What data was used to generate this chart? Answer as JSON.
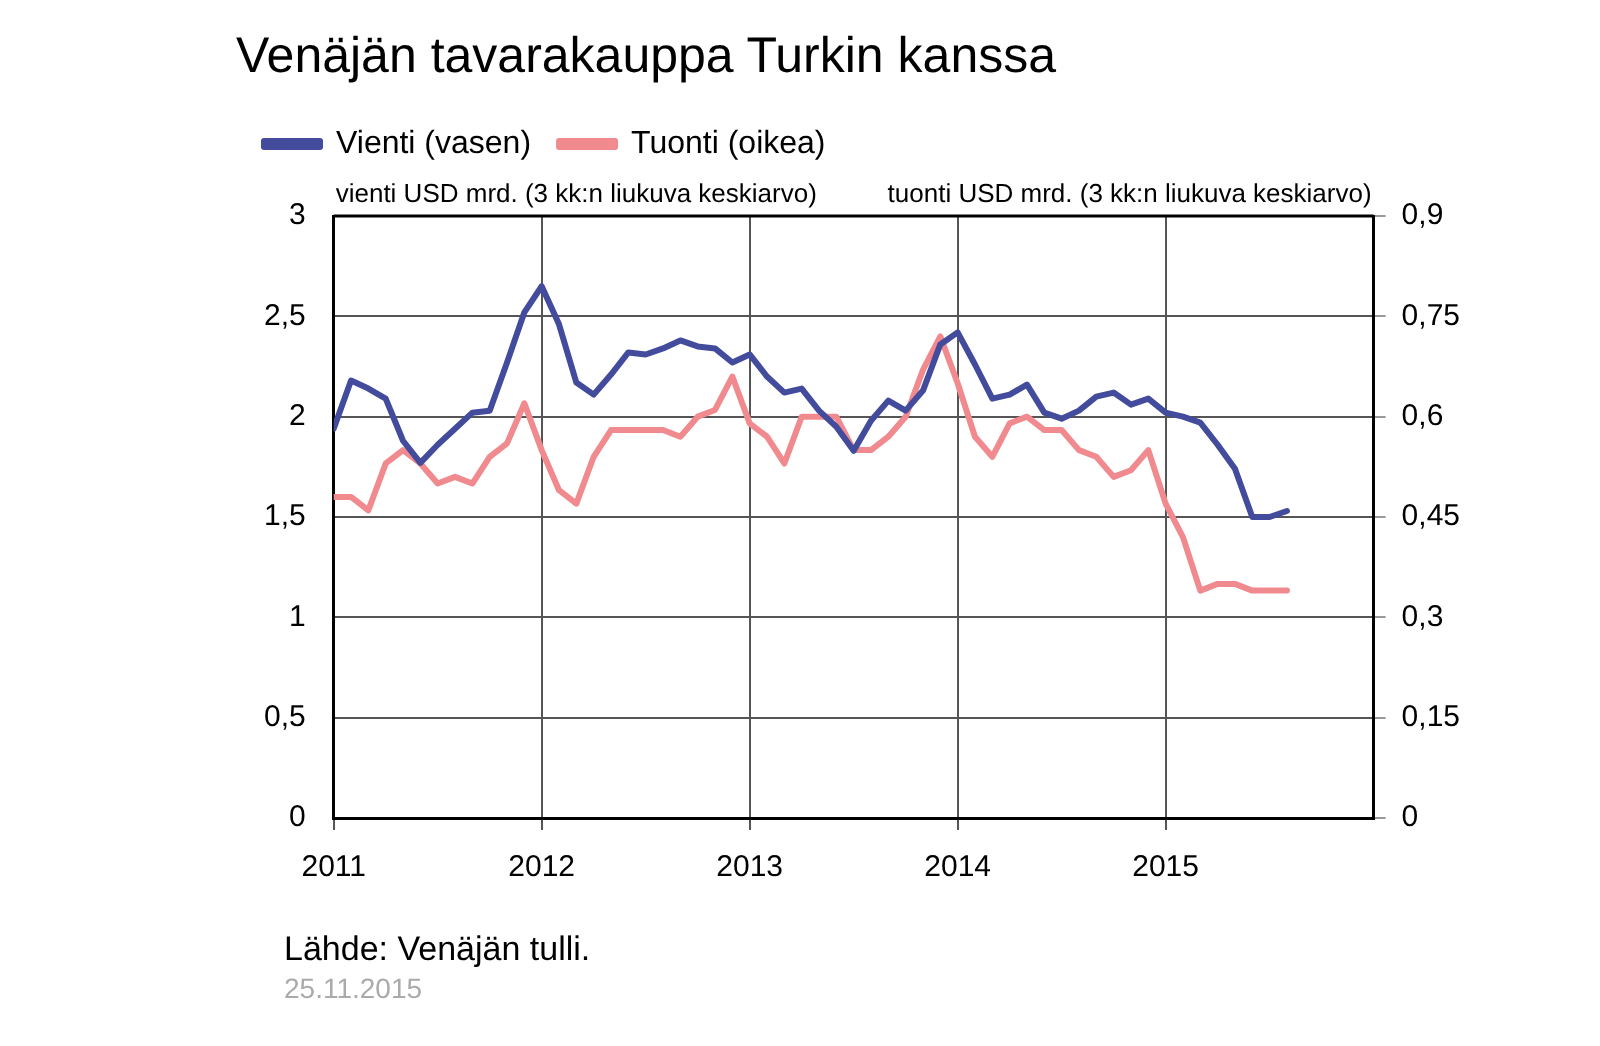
{
  "chart_data": {
    "type": "line",
    "title": "Venäjän tavarakauppa Turkin kanssa",
    "ylabel": "vienti USD mrd. (3 kk:n liukuva keskiarvo)",
    "y2label": "tuonti USD mrd. (3 kk:n liukuva keskiarvo)",
    "x": [
      "2011-01",
      "2011-02",
      "2011-03",
      "2011-04",
      "2011-05",
      "2011-06",
      "2011-07",
      "2011-08",
      "2011-09",
      "2011-10",
      "2011-11",
      "2011-12",
      "2012-01",
      "2012-02",
      "2012-03",
      "2012-04",
      "2012-05",
      "2012-06",
      "2012-07",
      "2012-08",
      "2012-09",
      "2012-10",
      "2012-11",
      "2012-12",
      "2013-01",
      "2013-02",
      "2013-03",
      "2013-04",
      "2013-05",
      "2013-06",
      "2013-07",
      "2013-08",
      "2013-09",
      "2013-10",
      "2013-11",
      "2013-12",
      "2014-01",
      "2014-02",
      "2014-03",
      "2014-04",
      "2014-05",
      "2014-06",
      "2014-07",
      "2014-08",
      "2014-09",
      "2014-10",
      "2014-11",
      "2014-12",
      "2015-01",
      "2015-02",
      "2015-03",
      "2015-04",
      "2015-05",
      "2015-06",
      "2015-07",
      "2015-08"
    ],
    "series": [
      {
        "name": "Vienti (vasen)",
        "color": "#424b9c",
        "values": [
          1.94,
          2.18,
          2.14,
          2.09,
          1.88,
          1.77,
          1.86,
          1.94,
          2.02,
          2.03,
          2.27,
          2.52,
          2.65,
          2.46,
          2.17,
          2.11,
          2.21,
          2.32,
          2.31,
          2.34,
          2.38,
          2.35,
          2.34,
          2.27,
          2.31,
          2.2,
          2.12,
          2.14,
          2.03,
          1.95,
          1.83,
          1.98,
          2.08,
          2.03,
          2.13,
          2.36,
          2.42,
          2.26,
          2.09,
          2.11,
          2.16,
          2.02,
          1.99,
          2.03,
          2.1,
          2.12,
          2.06,
          2.09,
          2.02,
          2.0,
          1.97,
          1.86,
          1.74,
          1.5,
          1.5,
          1.53
        ]
      },
      {
        "name": "Tuonti (oikea)",
        "color": "#f08a8f",
        "axis": "y2",
        "values": [
          0.48,
          0.48,
          0.46,
          0.53,
          0.55,
          0.53,
          0.5,
          0.51,
          0.5,
          0.54,
          0.56,
          0.62,
          0.55,
          0.49,
          0.47,
          0.54,
          0.58,
          0.58,
          0.58,
          0.58,
          0.57,
          0.6,
          0.61,
          0.66,
          0.59,
          0.57,
          0.53,
          0.6,
          0.6,
          0.6,
          0.55,
          0.55,
          0.57,
          0.6,
          0.67,
          0.72,
          0.65,
          0.57,
          0.54,
          0.59,
          0.6,
          0.58,
          0.58,
          0.55,
          0.54,
          0.51,
          0.52,
          0.55,
          0.47,
          0.42,
          0.34,
          0.35,
          0.35,
          0.34,
          0.34,
          0.34
        ]
      }
    ],
    "xlim": [
      "2011-01",
      "2016-01"
    ],
    "xticks": [
      {
        "value": "2011-01",
        "label": "2011"
      },
      {
        "value": "2012-01",
        "label": "2012"
      },
      {
        "value": "2013-01",
        "label": "2013"
      },
      {
        "value": "2014-01",
        "label": "2014"
      },
      {
        "value": "2015-01",
        "label": "2015"
      }
    ],
    "ylim": [
      0,
      3
    ],
    "yticks": [
      0,
      {
        "value": 0.5,
        "label": "0,5"
      },
      1,
      {
        "value": 1.5,
        "label": "1,5"
      },
      2,
      {
        "value": 2.5,
        "label": "2,5"
      },
      3
    ],
    "y2lim": [
      0,
      0.9
    ],
    "y2ticks": [
      0,
      {
        "value": 0.15,
        "label": "0,15"
      },
      {
        "value": 0.3,
        "label": "0,3"
      },
      {
        "value": 0.45,
        "label": "0,45"
      },
      {
        "value": 0.6,
        "label": "0,6"
      },
      {
        "value": 0.75,
        "label": "0,75"
      },
      {
        "value": 0.9,
        "label": "0,9"
      }
    ],
    "grid": true,
    "legend": "top left",
    "marker": "none",
    "line_style": "solid",
    "annotations": [
      "Lähde: Venäjän tulli.",
      "25.11.2015"
    ]
  }
}
